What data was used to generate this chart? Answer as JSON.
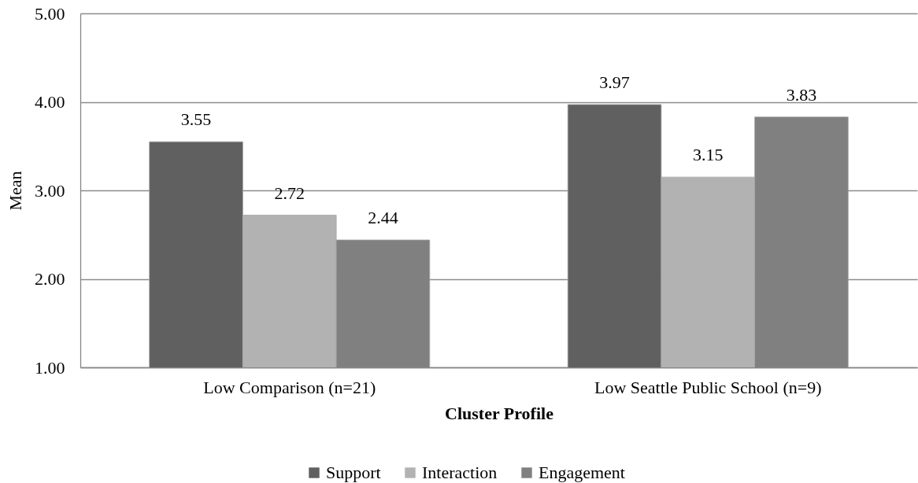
{
  "chart_data": {
    "type": "bar",
    "xlabel": "Cluster Profile",
    "ylabel": "Mean",
    "categories": [
      "Low Comparison (n=21)",
      "Low Seattle Public School (n=9)"
    ],
    "series": [
      {
        "name": "Support",
        "color": "#606060",
        "values": [
          3.55,
          3.97
        ]
      },
      {
        "name": "Interaction",
        "color": "#b2b2b2",
        "values": [
          2.72,
          3.15
        ]
      },
      {
        "name": "Engagement",
        "color": "#808080",
        "values": [
          2.44,
          3.83
        ]
      }
    ],
    "ylim": [
      1,
      5
    ],
    "yticks": [
      {
        "value": 1,
        "label": "1.00"
      },
      {
        "value": 2,
        "label": "2.00"
      },
      {
        "value": 3,
        "label": "3.00"
      },
      {
        "value": 4,
        "label": "4.00"
      },
      {
        "value": 5,
        "label": "5.00"
      }
    ],
    "grid": "y",
    "legend": "bottom",
    "data_labels": true
  }
}
